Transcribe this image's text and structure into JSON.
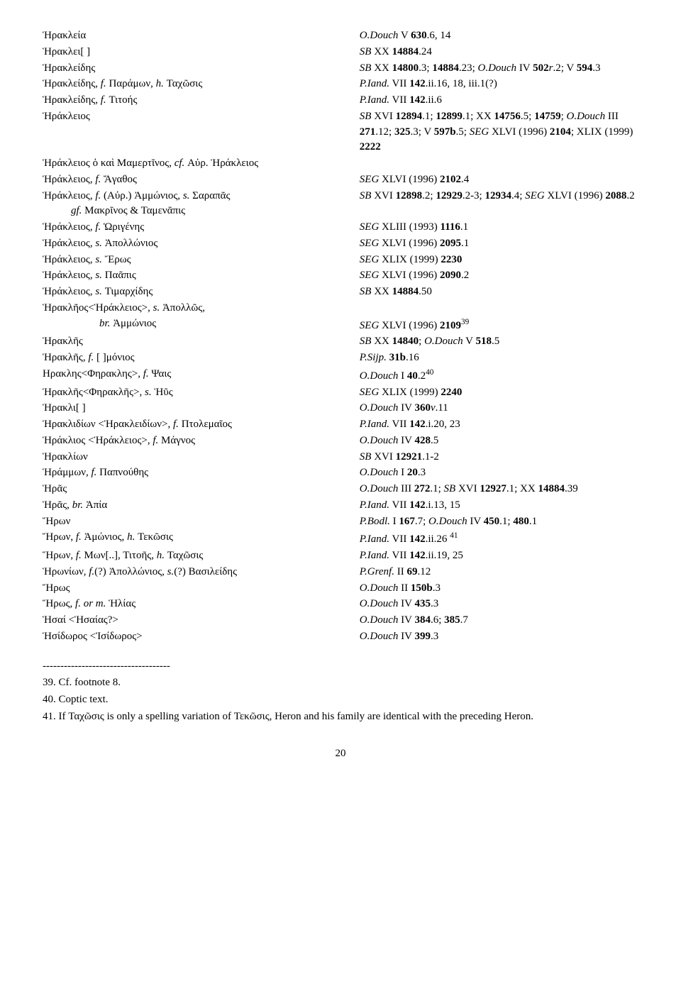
{
  "entries": [
    {
      "l": "Ἡρακλεία",
      "r": "<i>O.Douch</i> V <b>630</b>.6, 14"
    },
    {
      "l": "Ἡρακλει[ ]",
      "r": "<i>SB</i> XX <b>14884</b>.24"
    },
    {
      "l": "Ἡρακλείδης",
      "r": "<i>SB</i> XX <b>14800</b>.3; <b>14884</b>.23; <i>O.Douch</i> IV <b>502</b><i>r</i>.2; V <b>594</b>.3"
    },
    {
      "l": "Ἡρακλείδης, <i>f.</i> Παράμων, <i>h.</i> Ταχῶσις",
      "r": "<i>P.Iand.</i> VII <b>142</b>.ii.16, 18, iii.1(?)"
    },
    {
      "l": "Ἡρακλείδης, <i>f.</i> Τιτοής",
      "r": "<i>P.Iand.</i> VII <b>142</b>.ii.6"
    },
    {
      "l": "Ἡράκλειος",
      "r": "<i>SB</i> XVI <b>12894</b>.1; <b>12899</b>.1; XX <b>14756</b>.5; <b>14759</b>; <i>O.Douch</i> III <b>271</b>.12; <b>325</b>.3; V <b>597b</b>.5; <i>SEG</i> XLVI (1996) <b>2104</b>; XLIX (1999) <b>2222</b>"
    },
    {
      "l": "Ἡράκλειος ὁ καὶ Μαμερτῖνος, <i>cf.</i> Αὐρ. Ἡράκλειος",
      "r": ""
    },
    {
      "l": "Ἡράκλειος, <i>f.</i> Ἄγαθος",
      "r": "<i>SEG</i> XLVI (1996) <b>2102</b>.4"
    },
    {
      "l": "Ἡράκλειος, <i>f.</i> (Αὐρ.) Ἀμμώνιος, <i>s.</i> Σαραπᾶς <span style='display:block;padding-left:40px'><i>gf.</i> Μακρῖνος &amp; Ταμενᾶπις</span>",
      "r": "<i>SB</i> XVI <b>12898</b>.2; <b>12929</b>.2-3; <b>12934</b>.4; <i>SEG</i> XLVI (1996) <b>2088</b>.2"
    },
    {
      "l": "Ἡράκλειος, <i>f.</i> Ὡριγένης",
      "r": "<i>SEG</i> XLIII (1993) <b>1116</b>.1"
    },
    {
      "l": "Ἡράκλειος, <i>s.</i> Ἀπολλώνιος",
      "r": "<i>SEG</i> XLVI (1996) <b>2095</b>.1"
    },
    {
      "l": "Ἡράκλειος, <i>s.</i> Ἔρως",
      "r": "<i>SEG</i> XLIX (1999) <b>2230</b>"
    },
    {
      "l": "Ἡράκλειος, <i>s.</i> Παᾶπις",
      "r": "<i>SEG</i> XLVI (1996) <b>2090</b>.2"
    },
    {
      "l": "Ἡράκλειος, <i>s.</i> Τιμαρχίδης",
      "r": "<i>SB</i> XX <b>14884</b>.50"
    },
    {
      "l": "Ἡρακλῆος&lt;Ἡράκλειος&gt;, <i>s.</i> Ἀπολλῶς, <span style='display:block;padding-left:80px'><i>br.</i> Ἀμμώνιος</span>",
      "r": "<br><i>SEG</i> XLVI (1996) <b>2109</b><sup>39</sup>"
    },
    {
      "l": "Ἡρακλῆς",
      "r": "<i>SB</i> XX <b>14840</b>; <i>O.Douch</i> V <b>518</b>.5"
    },
    {
      "l": "Ἡρακλῆς, <i>f.</i> [ ]μόνιος",
      "r": "<i>P.Sijp.</i> <b>31b</b>.16"
    },
    {
      "l": "Ηρακλης&lt;Φηρακλης&gt;, <i>f.</i> Ψαις",
      "r": "<i>O.Douch</i> I <b>40</b>.2<sup>40</sup>"
    },
    {
      "l": "Ἡρακλῆς&lt;Φηρακλῆς&gt;, <i>s.</i> Ἠῦς",
      "r": "<i>SEG</i> XLIX (1999) <b>2240</b>"
    },
    {
      "l": "Ἡρακλι[ ]",
      "r": "<i>O.Douch</i> IV <b>360</b><i>v</i>.11"
    },
    {
      "l": "Ἡρακλιδίων &lt;Ἡρακλειδίων&gt;, <i>f.</i> Πτολεμαῖος",
      "r": "<i>P.Iand.</i> VII <b>142</b>.i.20, 23"
    },
    {
      "l": "Ἡράκλιος &lt;Ἡράκλειος&gt;, <i>f.</i> Μάγνος",
      "r": "<i>O.Douch</i> IV <b>428</b>.5"
    },
    {
      "l": "Ἡρακλίων",
      "r": "<i>SB</i> XVI <b>12921</b>.1-2"
    },
    {
      "l": "Ἡράμμων, <i>f.</i> Παπνούθης",
      "r": "<i>O.Douch</i> I <b>20</b>.3"
    },
    {
      "l": "Ἡρᾶς",
      "r": "<i>O.Douch</i> III <b>272</b>.1; <i>SB</i> XVI <b>12927</b>.1; XX <b>14884</b>.39"
    },
    {
      "l": "Ἡρᾶς, <i>br.</i> Ἀπία",
      "r": "<i>P.Iand.</i> VII <b>142</b>.i.13, 15"
    },
    {
      "l": "Ἥρων",
      "r": "<i>P.Bodl.</i> I <b>167</b>.7; <i>O.Douch</i> IV <b>450</b>.1; <b>480</b>.1"
    },
    {
      "l": "Ἥρων, <i>f.</i> Ἀμώνιος, <i>h.</i> Τεκῶσις",
      "r": "<i>P.Iand.</i> VII <b>142</b>.ii.26 <sup>41</sup>"
    },
    {
      "l": "Ἥρων, <i>f.</i> Μων[..], Τιτοῆς, <i>h.</i> Ταχῶσις",
      "r": "<i>P.Iand.</i> VII <b>142</b>.ii.19, 25"
    },
    {
      "l": "Ἡρωνίων, <i>f.</i>(?) Ἀπολλώνιος, <i>s.</i>(?) Βασιλείδης",
      "r": "<i>P.Grenf.</i> II <b>69</b>.12"
    },
    {
      "l": "Ἥρως",
      "r": "<i>O.Douch</i> II <b>150b</b>.3"
    },
    {
      "l": "Ἥρως, <i>f. or m.</i> Ἡλίας",
      "r": "<i>O.Douch</i> IV <b>435</b>.3"
    },
    {
      "l": "Ἡσαί &lt;Ἡσαίας?&gt;",
      "r": "<i>O.Douch</i> IV <b>384</b>.6; <b>385</b>.7"
    },
    {
      "l": "Ἡσίδωρος &lt;Ἰσίδωρος&gt;",
      "r": "<i>O.Douch</i> IV <b>399</b>.3"
    }
  ],
  "footnotes": {
    "sep": "------------------------------------",
    "lines": [
      "39. Cf. footnote 8.",
      "40. Coptic text.",
      "41. If Ταχῶσις is only a spelling variation of Τεκῶσις, Heron and his family are identical with the preceding Heron."
    ]
  },
  "page": "20"
}
